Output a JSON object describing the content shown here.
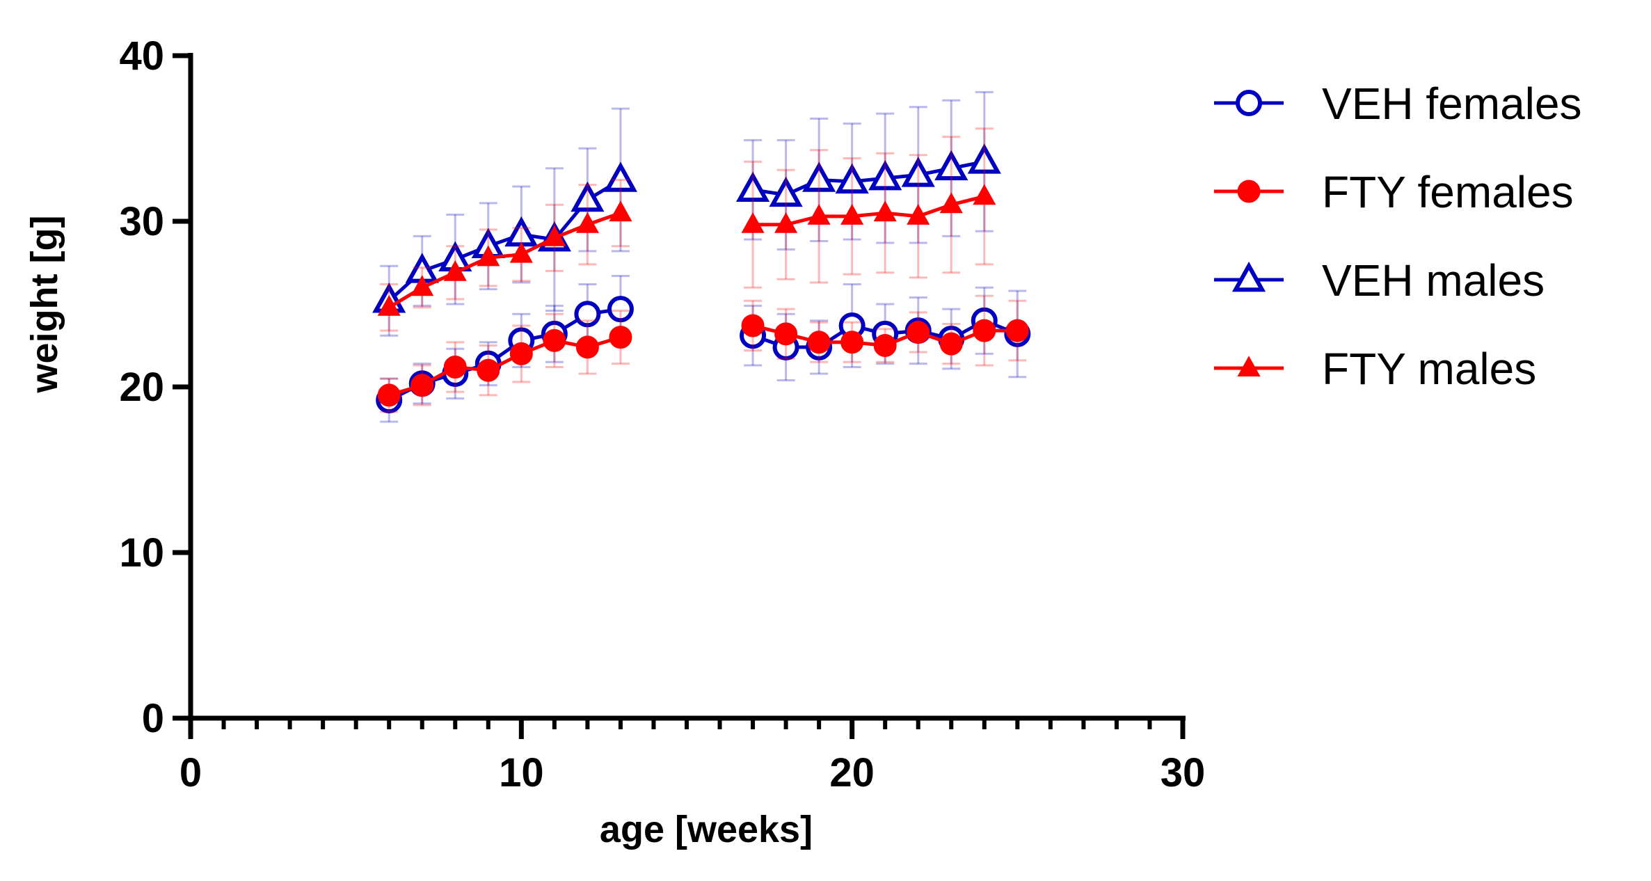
{
  "chart_data": {
    "type": "line",
    "xlabel": "age [weeks]",
    "ylabel": "weight [g]",
    "xlim": [
      0,
      30
    ],
    "ylim": [
      0,
      40
    ],
    "xticks": [
      0,
      10,
      20,
      30
    ],
    "yticks": [
      0,
      10,
      20,
      30,
      40
    ],
    "x_minor_step": 1,
    "grid": false,
    "legend_position": "right",
    "series": [
      {
        "name": "VEH females",
        "color": "#0000C0",
        "marker": "open-circle",
        "segments": [
          {
            "x": [
              6,
              7,
              8,
              9,
              10,
              11,
              12,
              13
            ],
            "y": [
              19.2,
              20.2,
              20.8,
              21.4,
              22.8,
              23.2,
              24.4,
              24.7
            ],
            "err": [
              1.3,
              1.2,
              1.5,
              1.3,
              1.6,
              1.7,
              1.8,
              2.0
            ]
          },
          {
            "x": [
              17,
              18,
              19,
              20,
              21,
              22,
              23,
              24,
              25
            ],
            "y": [
              23.1,
              22.4,
              22.4,
              23.7,
              23.2,
              23.4,
              22.9,
              24.0,
              23.2
            ],
            "err": [
              1.8,
              2.0,
              1.6,
              2.5,
              1.8,
              2.0,
              1.8,
              2.0,
              2.6
            ]
          }
        ]
      },
      {
        "name": "FTY females",
        "color": "#FF0000",
        "marker": "filled-circle",
        "segments": [
          {
            "x": [
              6,
              7,
              8,
              9,
              10,
              11,
              12,
              13
            ],
            "y": [
              19.5,
              20.1,
              21.2,
              21.0,
              22.0,
              22.8,
              22.4,
              23.0
            ],
            "err": [
              1.0,
              1.2,
              1.5,
              1.5,
              1.7,
              1.6,
              1.6,
              1.6
            ]
          },
          {
            "x": [
              17,
              18,
              19,
              20,
              21,
              22,
              23,
              24,
              25
            ],
            "y": [
              23.7,
              23.2,
              22.7,
              22.7,
              22.5,
              23.3,
              22.6,
              23.4,
              23.4
            ],
            "err": [
              1.5,
              1.5,
              1.2,
              1.2,
              1.0,
              1.2,
              1.2,
              2.1,
              1.8
            ]
          }
        ]
      },
      {
        "name": "VEH males",
        "color": "#0000C0",
        "marker": "open-triangle",
        "segments": [
          {
            "x": [
              6,
              7,
              8,
              9,
              10,
              11,
              12,
              13
            ],
            "y": [
              25.2,
              27.0,
              27.7,
              28.5,
              29.2,
              28.9,
              31.3,
              32.5
            ],
            "err": [
              2.1,
              2.1,
              2.7,
              2.6,
              2.9,
              4.3,
              3.1,
              4.3
            ]
          },
          {
            "x": [
              17,
              18,
              19,
              20,
              21,
              22,
              23,
              24
            ],
            "y": [
              31.9,
              31.6,
              32.5,
              32.4,
              32.6,
              32.8,
              33.2,
              33.6
            ],
            "err": [
              3.0,
              3.3,
              3.7,
              3.5,
              3.9,
              4.1,
              4.1,
              4.2
            ]
          }
        ]
      },
      {
        "name": "FTY males",
        "color": "#FF0000",
        "marker": "filled-triangle",
        "segments": [
          {
            "x": [
              6,
              7,
              8,
              9,
              10,
              11,
              12,
              13
            ],
            "y": [
              24.8,
              26.0,
              26.9,
              27.8,
              28.0,
              29.0,
              29.8,
              30.5
            ],
            "err": [
              1.4,
              1.2,
              1.6,
              1.7,
              1.6,
              2.0,
              2.4,
              2.0
            ]
          },
          {
            "x": [
              17,
              18,
              19,
              20,
              21,
              22,
              23,
              24
            ],
            "y": [
              29.8,
              29.8,
              30.3,
              30.3,
              30.5,
              30.3,
              31.0,
              31.5
            ],
            "err": [
              3.8,
              3.3,
              4.0,
              3.5,
              3.6,
              3.7,
              4.1,
              4.1
            ]
          }
        ]
      }
    ]
  }
}
